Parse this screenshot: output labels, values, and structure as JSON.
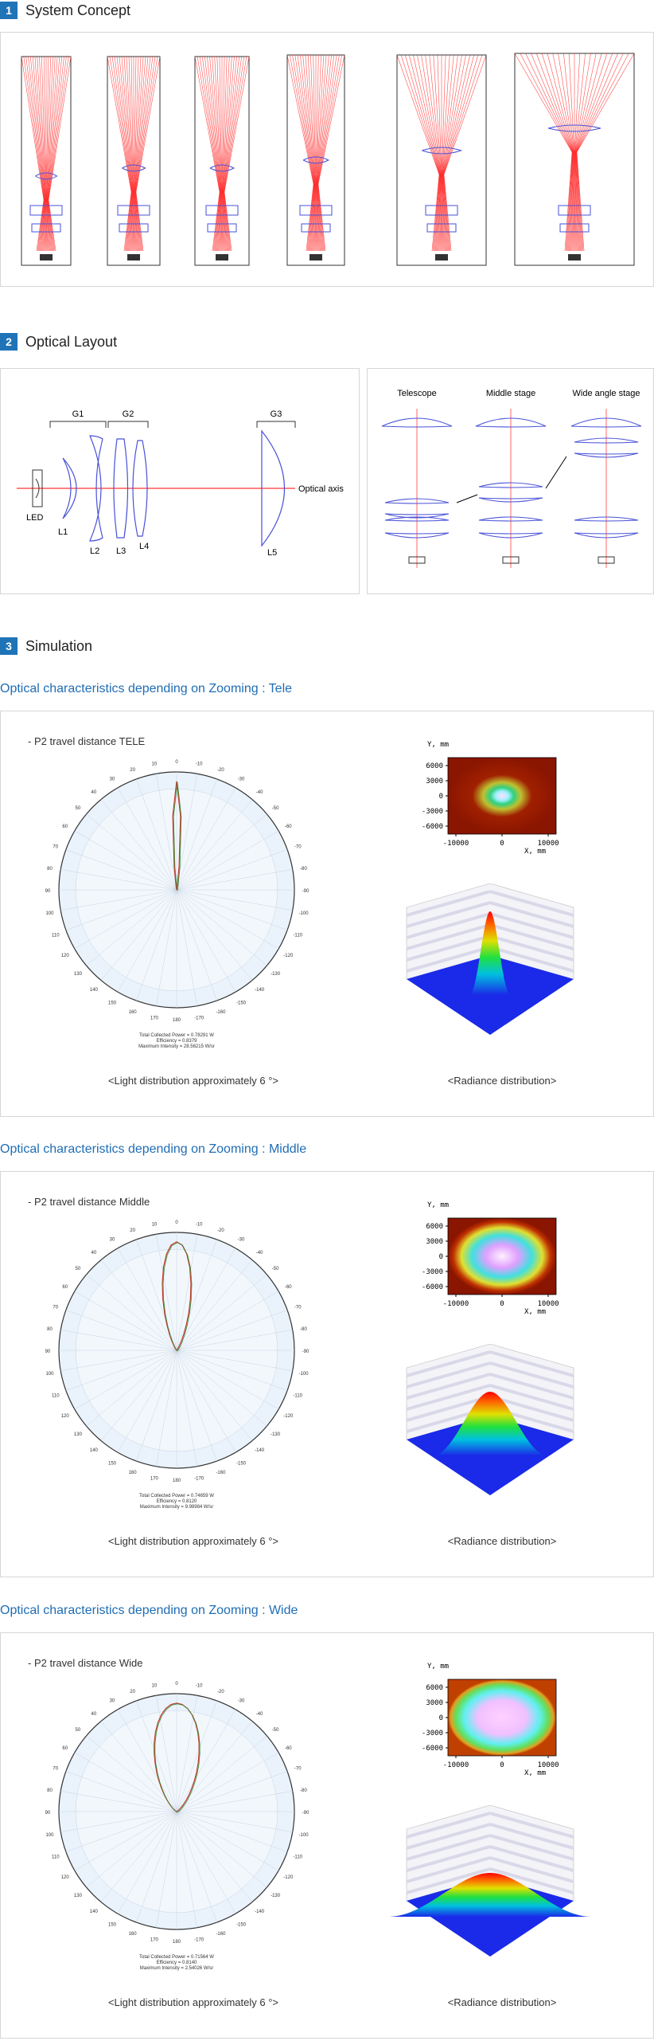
{
  "sections": {
    "s1": {
      "num": "1",
      "title": "System Concept"
    },
    "s2": {
      "num": "2",
      "title": "Optical Layout"
    },
    "s3": {
      "num": "3",
      "title": "Simulation"
    }
  },
  "layout": {
    "groups": [
      "G1",
      "G2",
      "G3"
    ],
    "lenses": [
      "L1",
      "L2",
      "L3",
      "L4",
      "L5"
    ],
    "led": "LED",
    "axis": "Optical axis",
    "stages": [
      "Telescope",
      "Middle stage",
      "Wide angle stage"
    ]
  },
  "sims": [
    {
      "heading": "Optical characteristics depending on Zooming : Tele",
      "travel": "-  P2 travel distance TELE",
      "light_caption": "<Light distribution approximately 6 °>",
      "radiance_caption": "<Radiance distribution>",
      "stats": [
        "Total Collected Power = 0.78291 W",
        "Efficiency = 0.8379",
        "Maximum Intensity = 28.56215 W/sr"
      ]
    },
    {
      "heading": "Optical characteristics depending on Zooming : Middle",
      "travel": "-  P2 travel distance   Middle",
      "light_caption": "<Light distribution approximately 6 °>",
      "radiance_caption": "<Radiance distribution>",
      "stats": [
        "Total Collected Power = 0.74659 W",
        "Efficiency = 0.8120",
        "Maximum Intensity = 9.98984 W/sr"
      ]
    },
    {
      "heading": "Optical characteristics depending on Zooming : Wide",
      "travel": "-  P2 travel distance Wide",
      "light_caption": "<Light distribution approximately 6 °>",
      "radiance_caption": "<Radiance distribution>",
      "stats": [
        "Total Collected Power = 0.71564 W",
        "Efficiency = 0.8140",
        "Maximum Intensity = 2.54026 W/sr"
      ]
    }
  ],
  "irradiance_map": {
    "y_label": "Y, mm",
    "x_label": "X, mm",
    "y_ticks": [
      "6000",
      "3000",
      "0",
      "-3000",
      "-6000"
    ],
    "x_ticks": [
      "-10000",
      "0",
      "10000"
    ]
  },
  "polar_ticks": [
    "0",
    "-10",
    "-20",
    "-30",
    "-40",
    "-50",
    "-60",
    "-70",
    "-80",
    "-90",
    "-100",
    "-110",
    "-120",
    "-130",
    "-140",
    "-150",
    "-160",
    "-170",
    "180",
    "170",
    "160",
    "150",
    "140",
    "130",
    "120",
    "110",
    "100",
    "90",
    "80",
    "70",
    "60",
    "50",
    "40",
    "30",
    "20",
    "10"
  ],
  "colors": {
    "accent": "#1f73b7",
    "heading": "#1f6db5",
    "ray": "#ff0000",
    "lens": "#4a52d8"
  }
}
